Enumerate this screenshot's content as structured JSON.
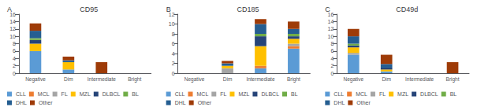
{
  "chart_data": [
    {
      "type": "bar",
      "title": "CD95",
      "annotations": [
        "A"
      ],
      "categories": [
        "Negative",
        "Dim",
        "Intermediate",
        "Bright"
      ],
      "series": [
        {
          "name": "CLL",
          "color": "#5B9BD5",
          "values": [
            6,
            1,
            0,
            0
          ]
        },
        {
          "name": "MCL",
          "color": "#ED7D31",
          "values": [
            0,
            0,
            0,
            0
          ]
        },
        {
          "name": "FL",
          "color": "#A5A5A5",
          "values": [
            0,
            0,
            0,
            0
          ]
        },
        {
          "name": "MZL",
          "color": "#FFC000",
          "values": [
            2,
            2,
            0,
            0
          ]
        },
        {
          "name": "DLBCL",
          "color": "#264478",
          "values": [
            1,
            0,
            0,
            0
          ]
        },
        {
          "name": "BL",
          "color": "#70AD47",
          "values": [
            0.5,
            0,
            0,
            0
          ]
        },
        {
          "name": "DHL",
          "color": "#255E91",
          "values": [
            2,
            0.5,
            0,
            0
          ]
        },
        {
          "name": "Other",
          "color": "#9E3B07",
          "values": [
            2,
            1,
            3,
            0
          ]
        }
      ],
      "ylim": [
        0,
        16
      ],
      "yticks": [
        0,
        2,
        4,
        6,
        8,
        10,
        12,
        14,
        16
      ],
      "stacked": true,
      "grid": false,
      "legend": "bottom"
    },
    {
      "type": "bar",
      "title": "CD185",
      "annotations": [
        "B"
      ],
      "categories": [
        "Negative",
        "Dim",
        "Intermediate",
        "Bright"
      ],
      "series": [
        {
          "name": "CLL",
          "color": "#5B9BD5",
          "values": [
            0,
            0,
            1,
            5
          ]
        },
        {
          "name": "MCL",
          "color": "#ED7D31",
          "values": [
            0,
            0,
            0.5,
            0.5
          ]
        },
        {
          "name": "FL",
          "color": "#A5A5A5",
          "values": [
            0,
            1,
            0,
            0.5
          ]
        },
        {
          "name": "MZL",
          "color": "#FFC000",
          "values": [
            0,
            0.5,
            4,
            1
          ]
        },
        {
          "name": "DLBCL",
          "color": "#264478",
          "values": [
            0,
            0,
            2,
            0.5
          ]
        },
        {
          "name": "BL",
          "color": "#70AD47",
          "values": [
            0,
            0,
            0.5,
            0.5
          ]
        },
        {
          "name": "DHL",
          "color": "#255E91",
          "values": [
            0,
            0.5,
            2,
            1
          ]
        },
        {
          "name": "Other",
          "color": "#9E3B07",
          "values": [
            0,
            0.5,
            1,
            1.5
          ]
        }
      ],
      "ylim": [
        0,
        12
      ],
      "yticks": [
        0,
        2,
        4,
        6,
        8,
        10,
        12
      ],
      "stacked": true,
      "grid": false,
      "legend": "bottom"
    },
    {
      "type": "bar",
      "title": "CD49d",
      "annotations": [
        "C"
      ],
      "categories": [
        "Negative",
        "Dim",
        "Intermediate",
        "Bright"
      ],
      "series": [
        {
          "name": "CLL",
          "color": "#5B9BD5",
          "values": [
            5,
            0.5,
            0,
            0
          ]
        },
        {
          "name": "MCL",
          "color": "#ED7D31",
          "values": [
            0,
            0,
            0,
            0
          ]
        },
        {
          "name": "FL",
          "color": "#A5A5A5",
          "values": [
            0.5,
            0,
            0,
            0
          ]
        },
        {
          "name": "MZL",
          "color": "#FFC000",
          "values": [
            1.5,
            0.5,
            0,
            0
          ]
        },
        {
          "name": "DLBCL",
          "color": "#264478",
          "values": [
            0.5,
            0.5,
            0,
            0
          ]
        },
        {
          "name": "BL",
          "color": "#70AD47",
          "values": [
            0.5,
            0,
            0,
            0
          ]
        },
        {
          "name": "DHL",
          "color": "#255E91",
          "values": [
            2,
            1,
            0,
            0
          ]
        },
        {
          "name": "Other",
          "color": "#9E3B07",
          "values": [
            2,
            2.5,
            0,
            3
          ]
        }
      ],
      "ylim": [
        0,
        16
      ],
      "yticks": [
        0,
        2,
        4,
        6,
        8,
        10,
        12,
        14,
        16
      ],
      "stacked": true,
      "grid": false,
      "legend": "bottom"
    }
  ]
}
